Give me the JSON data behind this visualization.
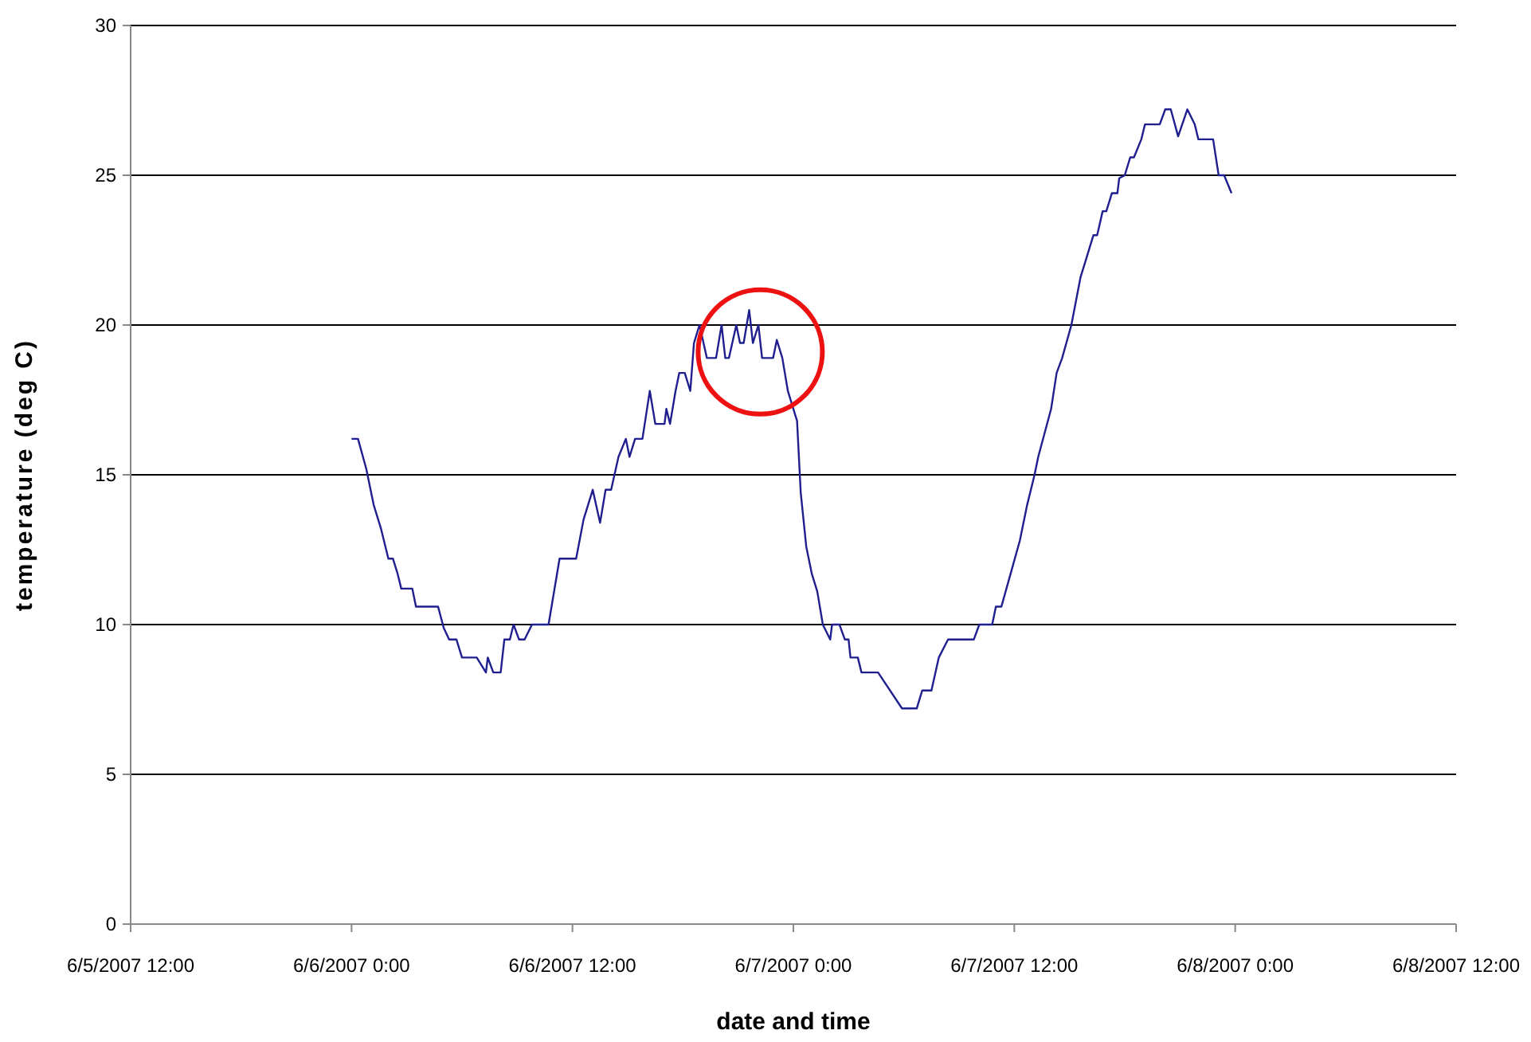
{
  "chart_data": {
    "type": "line",
    "xlabel": "date and time",
    "ylabel": "temperature (deg C)",
    "xlim": [
      "2007-06-05T12:00",
      "2007-06-08T12:00"
    ],
    "xticks": [
      {
        "value": "2007-06-05T12:00",
        "label": "6/5/2007 12:00"
      },
      {
        "value": "2007-06-06T00:00",
        "label": "6/6/2007 0:00"
      },
      {
        "value": "2007-06-06T12:00",
        "label": "6/6/2007 12:00"
      },
      {
        "value": "2007-06-07T00:00",
        "label": "6/7/2007 0:00"
      },
      {
        "value": "2007-06-07T12:00",
        "label": "6/7/2007 12:00"
      },
      {
        "value": "2007-06-08T00:00",
        "label": "6/8/2007 0:00"
      },
      {
        "value": "2007-06-08T12:00",
        "label": "6/8/2007 12:00"
      }
    ],
    "ylim": [
      0,
      30
    ],
    "yticks": [
      0,
      5,
      10,
      15,
      20,
      25,
      30
    ],
    "grid": "y",
    "marker": "none",
    "line_style": "solid",
    "series": [
      {
        "color": "#1f1f8f",
        "x": [
          "2007-06-06T00:00",
          "2007-06-06T00:21",
          "2007-06-06T00:48",
          "2007-06-06T01:12",
          "2007-06-06T01:36",
          "2007-06-06T02:00",
          "2007-06-06T02:15",
          "2007-06-06T02:30",
          "2007-06-06T02:42",
          "2007-06-06T03:18",
          "2007-06-06T03:30",
          "2007-06-06T04:42",
          "2007-06-06T05:00",
          "2007-06-06T05:18",
          "2007-06-06T05:42",
          "2007-06-06T06:00",
          "2007-06-06T06:48",
          "2007-06-06T07:18",
          "2007-06-06T07:24",
          "2007-06-06T07:42",
          "2007-06-06T08:06",
          "2007-06-06T08:18",
          "2007-06-06T08:36",
          "2007-06-06T08:48",
          "2007-06-06T09:06",
          "2007-06-06T09:24",
          "2007-06-06T09:48",
          "2007-06-06T10:42",
          "2007-06-06T11:18",
          "2007-06-06T12:12",
          "2007-06-06T12:36",
          "2007-06-06T13:06",
          "2007-06-06T13:30",
          "2007-06-06T13:48",
          "2007-06-06T14:06",
          "2007-06-06T14:30",
          "2007-06-06T14:54",
          "2007-06-06T15:06",
          "2007-06-06T15:24",
          "2007-06-06T15:48",
          "2007-06-06T16:12",
          "2007-06-06T16:30",
          "2007-06-06T17:00",
          "2007-06-06T17:06",
          "2007-06-06T17:18",
          "2007-06-06T17:36",
          "2007-06-06T17:48",
          "2007-06-06T18:06",
          "2007-06-06T18:24",
          "2007-06-06T18:36",
          "2007-06-06T18:54",
          "2007-06-06T19:18",
          "2007-06-06T19:48",
          "2007-06-06T20:06",
          "2007-06-06T20:18",
          "2007-06-06T20:30",
          "2007-06-06T20:54",
          "2007-06-06T21:06",
          "2007-06-06T21:18",
          "2007-06-06T21:36",
          "2007-06-06T21:48",
          "2007-06-06T22:06",
          "2007-06-06T22:18",
          "2007-06-06T22:54",
          "2007-06-06T23:06",
          "2007-06-06T23:24",
          "2007-06-06T23:42",
          "2007-06-07T00:12",
          "2007-06-07T00:24",
          "2007-06-07T00:42",
          "2007-06-07T01:00",
          "2007-06-07T01:18",
          "2007-06-07T01:36",
          "2007-06-07T02:00",
          "2007-06-07T02:06",
          "2007-06-07T02:30",
          "2007-06-07T02:48",
          "2007-06-07T03:00",
          "2007-06-07T03:06",
          "2007-06-07T03:30",
          "2007-06-07T03:42",
          "2007-06-07T04:36",
          "2007-06-07T05:54",
          "2007-06-07T06:42",
          "2007-06-07T07:00",
          "2007-06-07T07:30",
          "2007-06-07T07:54",
          "2007-06-07T08:24",
          "2007-06-07T09:48",
          "2007-06-07T10:06",
          "2007-06-07T10:48",
          "2007-06-07T11:00",
          "2007-06-07T11:18",
          "2007-06-07T11:48",
          "2007-06-07T12:18",
          "2007-06-07T12:42",
          "2007-06-07T13:06",
          "2007-06-07T13:18",
          "2007-06-07T14:00",
          "2007-06-07T14:18",
          "2007-06-07T14:36",
          "2007-06-07T15:06",
          "2007-06-07T15:36",
          "2007-06-07T15:54",
          "2007-06-07T16:18",
          "2007-06-07T16:30",
          "2007-06-07T16:48",
          "2007-06-07T17:00",
          "2007-06-07T17:18",
          "2007-06-07T17:36",
          "2007-06-07T17:42",
          "2007-06-07T18:00",
          "2007-06-07T18:18",
          "2007-06-07T18:30",
          "2007-06-07T18:54",
          "2007-06-07T19:06",
          "2007-06-07T19:54",
          "2007-06-07T20:12",
          "2007-06-07T20:30",
          "2007-06-07T20:54",
          "2007-06-07T21:24",
          "2007-06-07T21:48",
          "2007-06-07T22:00",
          "2007-06-07T22:48",
          "2007-06-07T23:06",
          "2007-06-07T23:24",
          "2007-06-07T23:48"
        ],
        "values": [
          16.2,
          16.2,
          15.2,
          14.0,
          13.2,
          12.2,
          12.2,
          11.7,
          11.2,
          11.2,
          10.6,
          10.6,
          9.9,
          9.5,
          9.5,
          8.9,
          8.9,
          8.4,
          8.9,
          8.4,
          8.4,
          9.5,
          9.5,
          10.0,
          9.5,
          9.5,
          10.0,
          10.0,
          12.2,
          12.2,
          13.5,
          14.5,
          13.4,
          14.5,
          14.5,
          15.6,
          16.2,
          15.6,
          16.2,
          16.2,
          17.8,
          16.7,
          16.7,
          17.2,
          16.7,
          17.8,
          18.4,
          18.4,
          17.8,
          19.4,
          20.0,
          18.9,
          18.9,
          20.0,
          18.9,
          18.9,
          20.0,
          19.4,
          19.4,
          20.5,
          19.4,
          20.0,
          18.9,
          18.9,
          19.5,
          18.9,
          17.8,
          16.8,
          14.4,
          12.6,
          11.7,
          11.1,
          10.0,
          9.5,
          10.0,
          10.0,
          9.5,
          9.5,
          8.9,
          8.9,
          8.4,
          8.4,
          7.2,
          7.2,
          7.8,
          7.8,
          8.9,
          9.5,
          9.5,
          10.0,
          10.0,
          10.6,
          10.6,
          11.7,
          12.8,
          14.0,
          15.0,
          15.6,
          17.2,
          18.4,
          18.9,
          20.0,
          21.6,
          22.2,
          23.0,
          23.0,
          23.8,
          23.8,
          24.4,
          24.4,
          24.9,
          25.0,
          25.6,
          25.6,
          26.2,
          26.7,
          26.7,
          27.2,
          27.2,
          26.3,
          27.2,
          26.7,
          26.2,
          26.2,
          25.0,
          25.0,
          24.4
        ]
      }
    ]
  }
}
